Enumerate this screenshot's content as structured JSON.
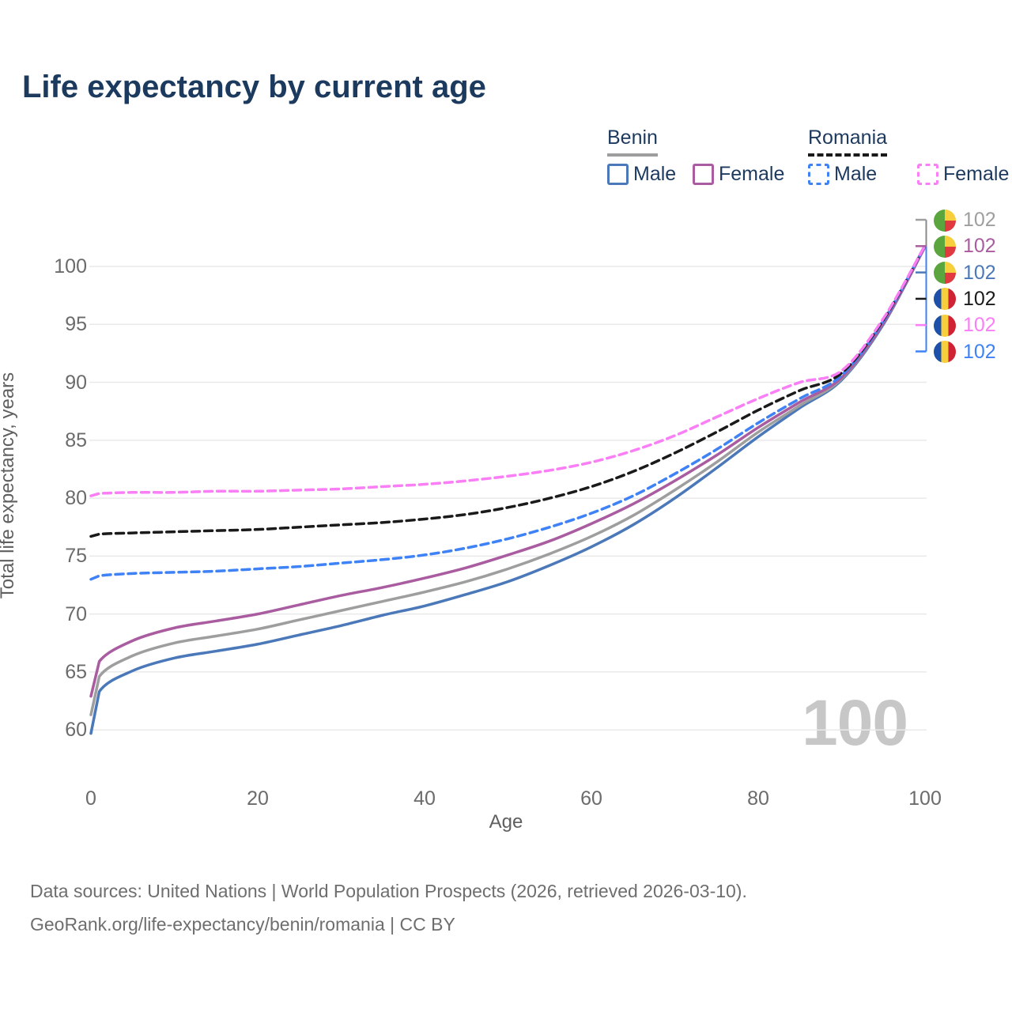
{
  "chart_data": {
    "type": "line",
    "title": "Life expectancy by current age",
    "xlabel": "Age",
    "ylabel": "Total life expectancy, years",
    "xlim": [
      0,
      100
    ],
    "ylim": [
      60,
      103.5
    ],
    "xticks": [
      0,
      20,
      40,
      60,
      80,
      100
    ],
    "yticks": [
      60,
      65,
      70,
      75,
      80,
      85,
      90,
      95,
      100
    ],
    "grid": "horizontal",
    "legend_position": "top-right",
    "x": [
      0,
      1,
      5,
      10,
      15,
      20,
      25,
      30,
      35,
      40,
      45,
      50,
      55,
      60,
      65,
      70,
      75,
      80,
      85,
      90,
      95,
      100
    ],
    "series": [
      {
        "key": "benin_male",
        "name": "Benin Male",
        "color": "#4a78b8",
        "dash": "solid",
        "values": [
          59.7,
          63.3,
          65.1,
          66.2,
          66.8,
          67.4,
          68.2,
          69.0,
          69.9,
          70.7,
          71.7,
          72.8,
          74.2,
          75.8,
          77.7,
          80.0,
          82.6,
          85.3,
          87.8,
          90.2,
          95.0,
          101.7
        ]
      },
      {
        "key": "benin_both",
        "name": "Benin Both sexes",
        "color": "#9e9e9e",
        "dash": "solid",
        "values": [
          61.3,
          64.6,
          66.4,
          67.5,
          68.1,
          68.7,
          69.5,
          70.3,
          71.1,
          71.9,
          72.8,
          73.9,
          75.2,
          76.7,
          78.5,
          80.7,
          83.1,
          85.7,
          88.0,
          90.3,
          95.1,
          101.7
        ]
      },
      {
        "key": "benin_female",
        "name": "Benin Female",
        "color": "#a95c9f",
        "dash": "solid",
        "values": [
          62.9,
          65.9,
          67.7,
          68.8,
          69.4,
          70.0,
          70.8,
          71.6,
          72.3,
          73.1,
          74.0,
          75.1,
          76.3,
          77.8,
          79.5,
          81.5,
          83.7,
          86.1,
          88.3,
          90.4,
          95.1,
          101.7
        ]
      },
      {
        "key": "romania_male",
        "name": "Romania Male",
        "color": "#3e82f5",
        "dash": "dashed",
        "values": [
          73.0,
          73.3,
          73.5,
          73.6,
          73.7,
          73.9,
          74.1,
          74.4,
          74.7,
          75.1,
          75.7,
          76.5,
          77.5,
          78.7,
          80.2,
          82.1,
          84.2,
          86.5,
          88.6,
          90.6,
          95.3,
          101.8
        ]
      },
      {
        "key": "romania_both",
        "name": "Romania Both sexes",
        "color": "#1a1a1a",
        "dash": "dashed",
        "values": [
          76.7,
          76.9,
          77.0,
          77.1,
          77.2,
          77.3,
          77.5,
          77.7,
          77.9,
          78.2,
          78.6,
          79.2,
          80.0,
          81.0,
          82.3,
          83.9,
          85.7,
          87.6,
          89.3,
          90.8,
          95.4,
          101.8
        ]
      },
      {
        "key": "romania_female",
        "name": "Romania Female",
        "color": "#fa7ef5",
        "dash": "dashed",
        "values": [
          80.2,
          80.4,
          80.5,
          80.5,
          80.6,
          80.6,
          80.7,
          80.8,
          81.0,
          81.2,
          81.5,
          81.9,
          82.4,
          83.1,
          84.1,
          85.4,
          87.0,
          88.6,
          90.0,
          91.0,
          95.5,
          101.8
        ]
      }
    ],
    "end_labels": [
      {
        "series": "benin_both",
        "flag": "benin",
        "value": "102"
      },
      {
        "series": "benin_female",
        "flag": "benin",
        "value": "102"
      },
      {
        "series": "benin_male",
        "flag": "benin",
        "value": "102"
      },
      {
        "series": "romania_both",
        "flag": "romania",
        "value": "102"
      },
      {
        "series": "romania_female",
        "flag": "romania",
        "value": "102"
      },
      {
        "series": "romania_male",
        "flag": "romania",
        "value": "102"
      }
    ],
    "flags": {
      "benin": {
        "green": "#5ba53f",
        "yellow": "#f7cf3d",
        "red": "#e0393f"
      },
      "romania": {
        "blue": "#1d50a8",
        "yellow": "#f7cf3d",
        "red": "#cf2334"
      }
    },
    "legend": {
      "groups": [
        {
          "label": "Benin",
          "line_style": "solid",
          "line_color": "#9e9e9e",
          "items": [
            {
              "label": "Male",
              "series": "benin_male"
            },
            {
              "label": "Female",
              "series": "benin_female"
            }
          ]
        },
        {
          "label": "Romania",
          "line_style": "dashed",
          "line_color": "#1a1a1a",
          "items": [
            {
              "label": "Male",
              "series": "romania_male"
            },
            {
              "label": "Female",
              "series": "romania_female"
            }
          ]
        }
      ]
    }
  },
  "watermark": {
    "text": "100"
  },
  "sources": {
    "line1": "Data sources: United Nations | World Population Prospects (2026, retrieved 2026-03-10).",
    "line2": "GeoRank.org/life-expectancy/benin/romania | CC BY"
  },
  "colors": {
    "title": "#1c3a5e",
    "tick": "#6b6b6b",
    "grid": "#e9e9e9",
    "leader_top": "#8a8a8a",
    "leader_bottom": "#3e82f5",
    "watermark": "#c7c7c7"
  }
}
